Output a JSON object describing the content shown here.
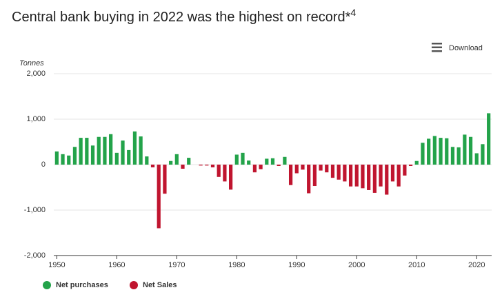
{
  "chart_data": {
    "type": "bar",
    "title": "Central bank buying in 2022 was the highest on record*",
    "title_superscript": "4",
    "ylabel": "Tonnes",
    "button": "Download",
    "x": [
      1950,
      1951,
      1952,
      1953,
      1954,
      1955,
      1956,
      1957,
      1958,
      1959,
      1960,
      1961,
      1962,
      1963,
      1964,
      1965,
      1966,
      1967,
      1968,
      1969,
      1970,
      1971,
      1972,
      1973,
      1974,
      1975,
      1976,
      1977,
      1978,
      1979,
      1980,
      1981,
      1982,
      1983,
      1984,
      1985,
      1986,
      1987,
      1988,
      1989,
      1990,
      1991,
      1992,
      1993,
      1994,
      1995,
      1996,
      1997,
      1998,
      1999,
      2000,
      2001,
      2002,
      2003,
      2004,
      2005,
      2006,
      2007,
      2008,
      2009,
      2010,
      2011,
      2012,
      2013,
      2014,
      2015,
      2016,
      2017,
      2018,
      2019,
      2020,
      2021,
      2022
    ],
    "series": [
      {
        "name": "Net purchases",
        "color": "#23a34a",
        "values": [
          290,
          230,
          200,
          390,
          590,
          590,
          420,
          610,
          610,
          670,
          260,
          530,
          320,
          730,
          620,
          180,
          null,
          null,
          null,
          80,
          230,
          null,
          150,
          null,
          null,
          null,
          null,
          null,
          null,
          null,
          220,
          260,
          90,
          null,
          null,
          130,
          140,
          null,
          170,
          null,
          null,
          null,
          null,
          null,
          null,
          null,
          null,
          null,
          null,
          null,
          null,
          null,
          null,
          null,
          null,
          null,
          null,
          null,
          null,
          null,
          80,
          480,
          570,
          630,
          590,
          580,
          390,
          380,
          660,
          610,
          250,
          450,
          1130
        ]
      },
      {
        "name": "Net Sales",
        "color": "#c0152f",
        "values": [
          null,
          null,
          null,
          null,
          null,
          null,
          null,
          null,
          null,
          null,
          null,
          null,
          null,
          null,
          null,
          null,
          -60,
          -1400,
          -640,
          null,
          null,
          -90,
          null,
          null,
          -20,
          -20,
          -60,
          -270,
          -370,
          -550,
          null,
          null,
          null,
          -170,
          -100,
          null,
          null,
          -30,
          null,
          -450,
          -190,
          -110,
          -630,
          -470,
          -130,
          -170,
          -290,
          -330,
          -370,
          -480,
          -480,
          -520,
          -560,
          -620,
          -480,
          -660,
          -370,
          -480,
          -240,
          -30,
          null,
          null,
          null,
          null,
          null,
          null,
          null,
          null,
          null,
          null,
          null,
          null,
          null
        ]
      }
    ],
    "xlim": [
      1949.5,
      2022.5
    ],
    "xticks": [
      1950,
      1960,
      1970,
      1980,
      1990,
      2000,
      2010,
      2020
    ],
    "ylim": [
      -2000,
      2000
    ],
    "yticks": [
      {
        "value": -2000,
        "label": "-2,000"
      },
      {
        "value": -1000,
        "label": "-1,000"
      },
      0,
      {
        "value": 1000,
        "label": "1,000"
      },
      {
        "value": 2000,
        "label": "2,000"
      }
    ],
    "grid": true
  }
}
